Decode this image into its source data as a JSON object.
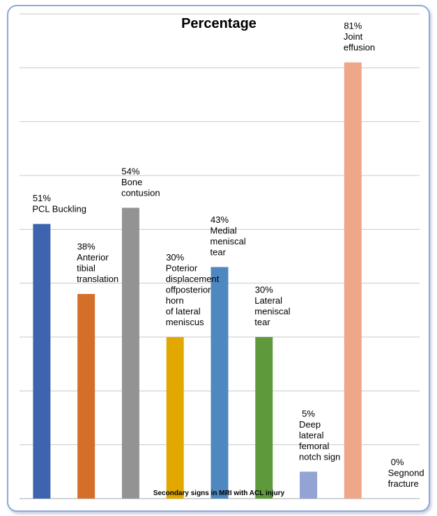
{
  "chart_data": {
    "type": "bar",
    "title": "Percentage",
    "xlabel": "Secondary  signs in MRI with ACL injury",
    "ylabel": "",
    "ylim": [
      0,
      90
    ],
    "grid": true,
    "legend": "none",
    "categories": [
      "PCL Buckling",
      "Anterior tibial translation",
      "Bone contusion",
      "Poterior displacement offposterior horn of lateral meniscus",
      "Medial meniscal tear",
      "Lateral meniscal tear",
      "Deep lateral femoral notch sign",
      "Joint effusion",
      "Segnond fracture"
    ],
    "values": [
      51,
      38,
      54,
      30,
      43,
      30,
      5,
      81,
      0
    ],
    "data_labels": [
      [
        "51%",
        "PCL Buckling"
      ],
      [
        "38%",
        "Anterior",
        "tibial",
        "translation"
      ],
      [
        "54%",
        "Bone",
        "contusion"
      ],
      [
        "30%",
        "Poterior",
        "displacement",
        "offposterior",
        "horn",
        "of lateral",
        "meniscus"
      ],
      [
        "43%",
        "Medial",
        "meniscal",
        "tear"
      ],
      [
        "30%",
        "Lateral",
        "meniscal",
        "tear"
      ],
      [
        "5%",
        "Deep",
        "lateral",
        "femoral",
        "notch sign"
      ],
      [
        "81%",
        "Joint",
        "effusion"
      ],
      [
        "0%",
        "Segnond",
        "fracture"
      ]
    ],
    "colors": [
      "#3e64b0",
      "#d46f2a",
      "#939393",
      "#e3a800",
      "#4f87c1",
      "#5e9a3c",
      "#92a3d4",
      "#efa789",
      "#5b9bd5"
    ]
  }
}
